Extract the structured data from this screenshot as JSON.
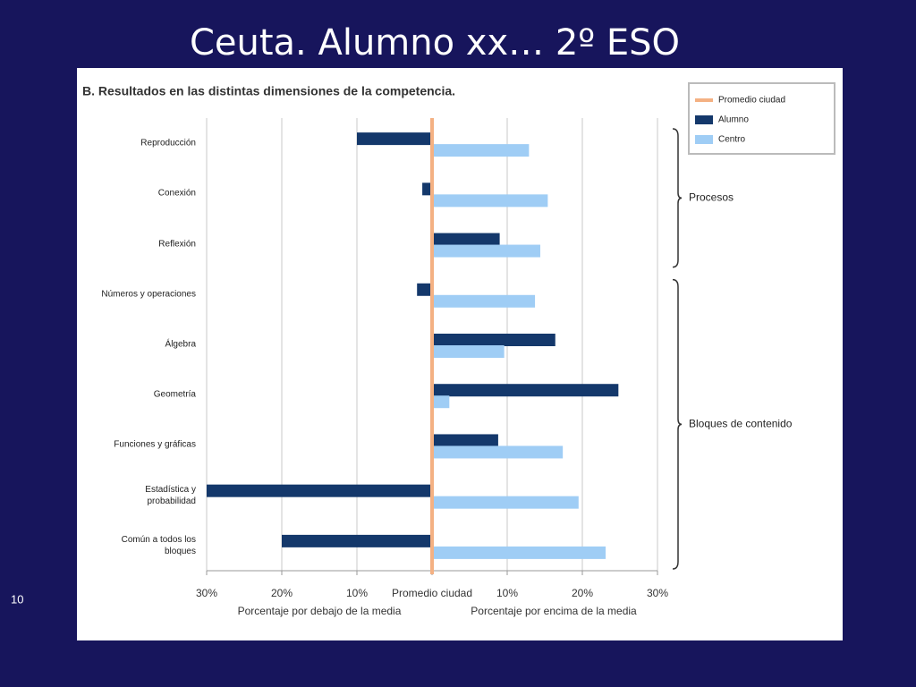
{
  "slide": {
    "title": "Ceuta. Alumno xx…  2º ESO",
    "page_number": 10
  },
  "chart_data": {
    "type": "diverging-bar",
    "title": "B. Resultados en las distintas dimensiones de la competencia.",
    "categories": [
      "Reproducción",
      "Conexión",
      "Reflexión",
      "Números y operaciones",
      "Álgebra",
      "Geometría",
      "Funciones y gráficas",
      "Estadística y\nprobabilidad",
      "Común a todos los\nbloques"
    ],
    "series": [
      {
        "name": "Alumno",
        "color": "#14386b",
        "values": [
          -10,
          -1.3,
          9,
          -2,
          16.4,
          24.8,
          8.8,
          -30,
          -20
        ]
      },
      {
        "name": "Centro",
        "color": "#9fcdf5",
        "values": [
          12.9,
          15.4,
          14.4,
          13.7,
          9.6,
          2.3,
          17.4,
          19.5,
          23.1
        ]
      }
    ],
    "reference_line": {
      "name": "Promedio ciudad",
      "value": 0,
      "color": "#f4b183"
    },
    "xlim": [
      -30,
      30
    ],
    "xticks": [
      {
        "value": -30,
        "label": "30%"
      },
      {
        "value": -20,
        "label": "20%"
      },
      {
        "value": -10,
        "label": "10%"
      },
      {
        "value": 0,
        "label": "Promedio ciudad"
      },
      {
        "value": 10,
        "label": "10%"
      },
      {
        "value": 20,
        "label": "20%"
      },
      {
        "value": 30,
        "label": "30%"
      }
    ],
    "xlabel_left": "Porcentaje por debajo de la media",
    "xlabel_right": "Porcentaje por encima de la media",
    "groups": [
      "Procesos",
      "Bloques de contenido"
    ],
    "grid": true,
    "legend": "top-right"
  }
}
